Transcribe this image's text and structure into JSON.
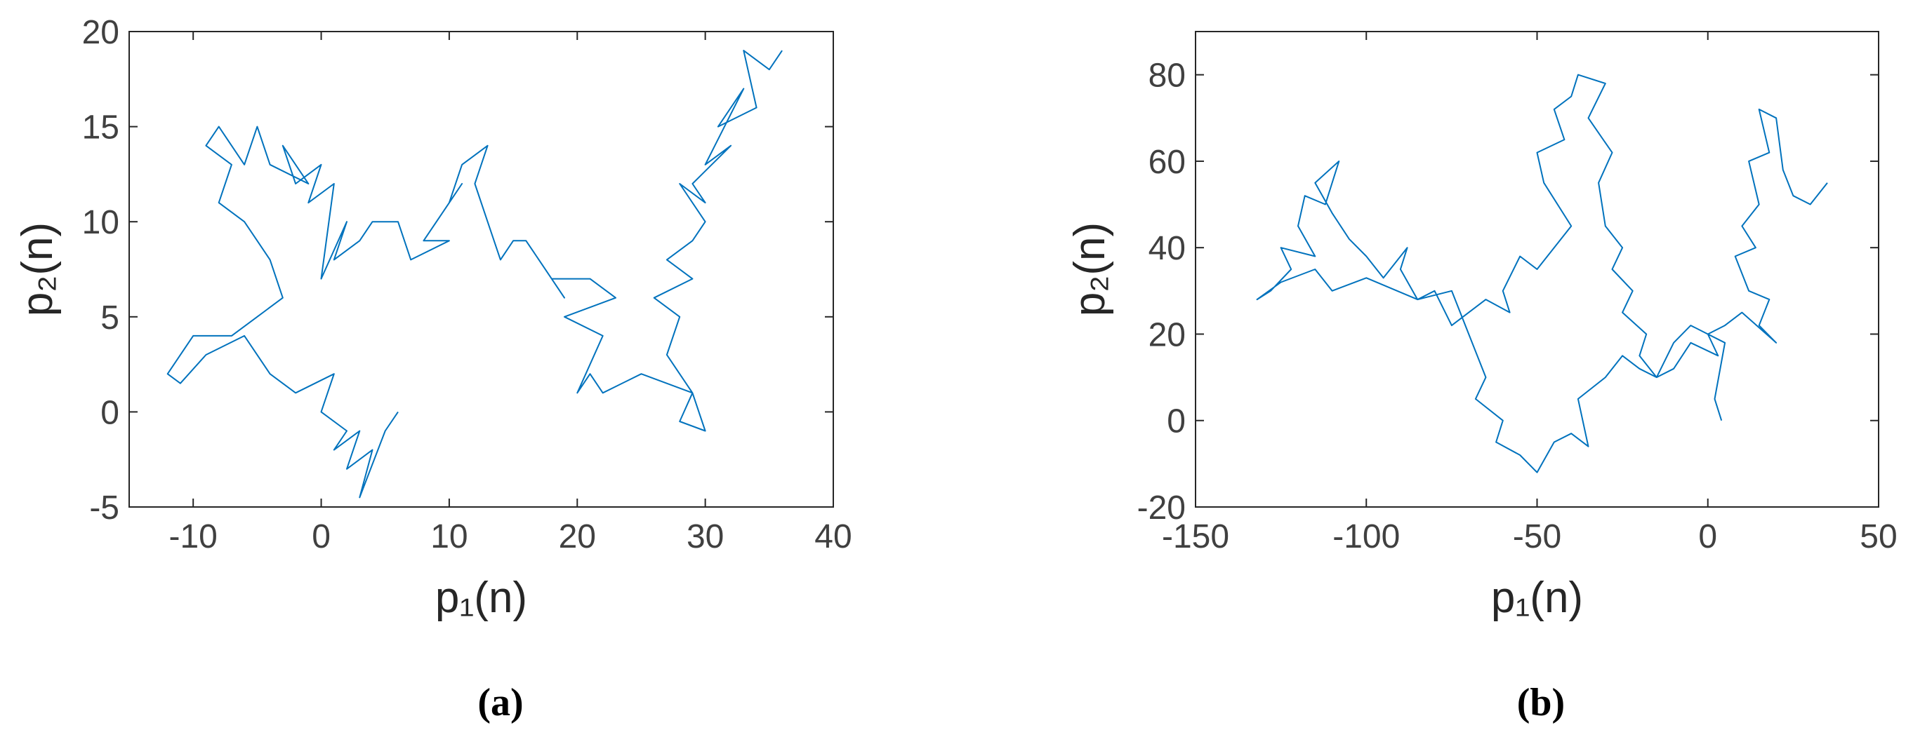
{
  "chart_data": [
    {
      "type": "line",
      "caption": "(a)",
      "xlabel": "p₁(n)",
      "ylabel": "p₂(n)",
      "color": "#0072bd",
      "xlim": [
        -15,
        40
      ],
      "xticks": [
        -10,
        0,
        10,
        20,
        30,
        40
      ],
      "ylim": [
        -5,
        20
      ],
      "yticks": [
        -5,
        0,
        5,
        10,
        15,
        20
      ],
      "x": [
        36,
        35,
        33,
        34,
        31,
        33,
        30,
        32,
        29,
        30,
        28,
        30,
        29,
        27,
        29,
        26,
        28,
        27,
        29,
        30,
        28,
        29,
        25,
        22,
        21,
        20,
        22,
        19,
        23,
        21,
        18,
        19,
        17,
        16,
        15,
        14,
        13,
        12,
        13,
        11,
        10,
        11,
        9,
        8,
        10,
        7,
        6,
        4,
        3,
        1,
        2,
        0,
        1,
        -1,
        0,
        -2,
        -3,
        -1,
        -4,
        -5,
        -6,
        -8,
        -9,
        -7,
        -8,
        -6,
        -5,
        -4,
        -3,
        -5,
        -7,
        -10,
        -12,
        -11,
        -9,
        -6,
        -4,
        -2,
        1,
        0,
        2,
        1,
        3,
        2,
        4,
        3,
        5,
        6
      ],
      "values": [
        19,
        18,
        19,
        16,
        15,
        17,
        13,
        14,
        12,
        11,
        12,
        10,
        9,
        8,
        7,
        6,
        5,
        3,
        1,
        -1,
        -0.5,
        1,
        2,
        1,
        2,
        1,
        4,
        5,
        6,
        7,
        7,
        6,
        8,
        9,
        9,
        8,
        10,
        12,
        14,
        13,
        11,
        12,
        10,
        9,
        9,
        8,
        10,
        10,
        9,
        8,
        10,
        7,
        12,
        11,
        13,
        12,
        14,
        12,
        13,
        15,
        13,
        15,
        14,
        13,
        11,
        10,
        9,
        8,
        6,
        5,
        4,
        4,
        2,
        1.5,
        3,
        4,
        2,
        1,
        2,
        0,
        -1,
        -2,
        -1,
        -3,
        -2,
        -4.5,
        -1,
        0
      ]
    },
    {
      "type": "line",
      "caption": "(b)",
      "xlabel": "p₁(n)",
      "ylabel": "p₂(n)",
      "color": "#0072bd",
      "xlim": [
        -150,
        50
      ],
      "xticks": [
        -150,
        -100,
        -50,
        0,
        50
      ],
      "ylim": [
        -20,
        90
      ],
      "yticks": [
        -20,
        0,
        20,
        40,
        60,
        80
      ],
      "x": [
        35,
        30,
        25,
        22,
        20,
        15,
        18,
        12,
        15,
        10,
        14,
        8,
        12,
        18,
        15,
        20,
        10,
        5,
        0,
        3,
        -5,
        -10,
        -15,
        -20,
        -18,
        -25,
        -22,
        -28,
        -25,
        -30,
        -32,
        -28,
        -35,
        -30,
        -38,
        -40,
        -45,
        -42,
        -50,
        -48,
        -40,
        -45,
        -50,
        -55,
        -60,
        -58,
        -65,
        -70,
        -75,
        -80,
        -85,
        -90,
        -88,
        -95,
        -100,
        -105,
        -110,
        -115,
        -108,
        -112,
        -118,
        -120,
        -115,
        -125,
        -122,
        -128,
        -132,
        -125,
        -115,
        -110,
        -100,
        -85,
        -75,
        -70,
        -65,
        -68,
        -60,
        -62,
        -55,
        -50,
        -45,
        -40,
        -35,
        -38,
        -30,
        -25,
        -20,
        -15,
        -10,
        -5,
        0,
        5,
        2,
        4
      ],
      "values": [
        55,
        50,
        52,
        58,
        70,
        72,
        62,
        60,
        50,
        45,
        40,
        38,
        30,
        28,
        22,
        18,
        25,
        22,
        20,
        15,
        18,
        12,
        10,
        15,
        20,
        25,
        30,
        35,
        40,
        45,
        55,
        62,
        70,
        78,
        80,
        75,
        72,
        65,
        62,
        55,
        45,
        40,
        35,
        38,
        30,
        25,
        28,
        25,
        22,
        30,
        28,
        35,
        40,
        33,
        38,
        42,
        48,
        55,
        60,
        50,
        52,
        45,
        38,
        40,
        35,
        30,
        28,
        32,
        35,
        30,
        33,
        28,
        30,
        20,
        10,
        5,
        0,
        -5,
        -8,
        -12,
        -5,
        -3,
        -6,
        5,
        10,
        15,
        12,
        10,
        18,
        22,
        20,
        18,
        5,
        0
      ]
    }
  ]
}
